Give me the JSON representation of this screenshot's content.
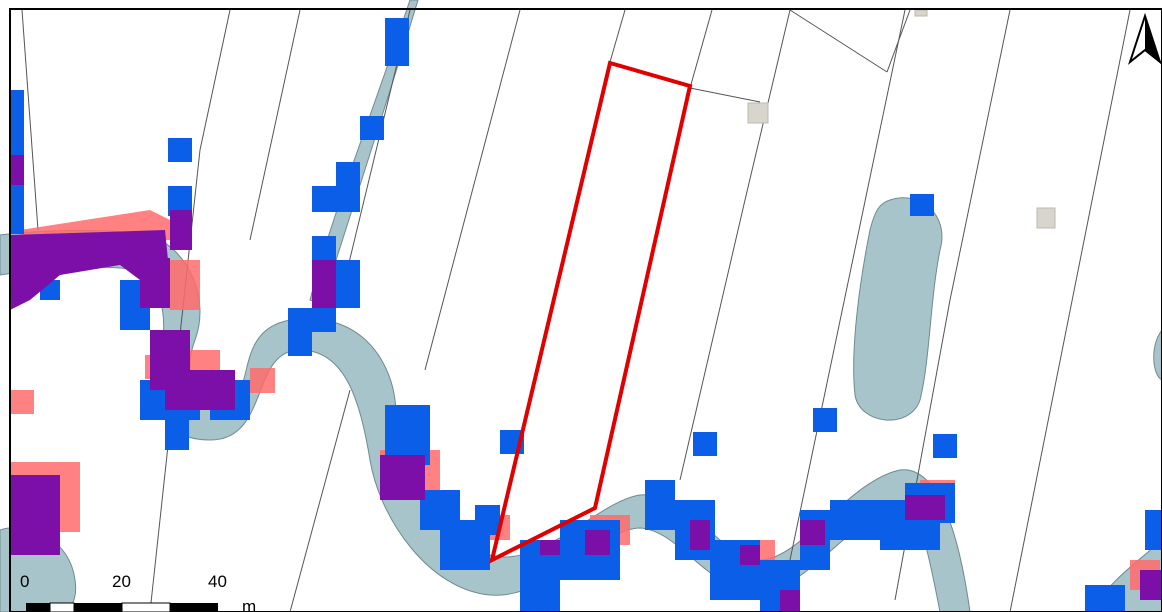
{
  "map": {
    "scale_bar": {
      "ticks": [
        "0",
        "20",
        "40"
      ],
      "unit": "m"
    },
    "north_arrow": {
      "icon": "north-arrow-icon"
    },
    "layers": {
      "water_fill": "#a8c4cb",
      "high_risk": "#0a5ee8",
      "medium_risk": "#ff6b6b",
      "overlap": "#7b0fa8",
      "selected_parcel": "#e00000",
      "parcel_lines": "#555555",
      "buildings": "#d8d5cc"
    }
  }
}
